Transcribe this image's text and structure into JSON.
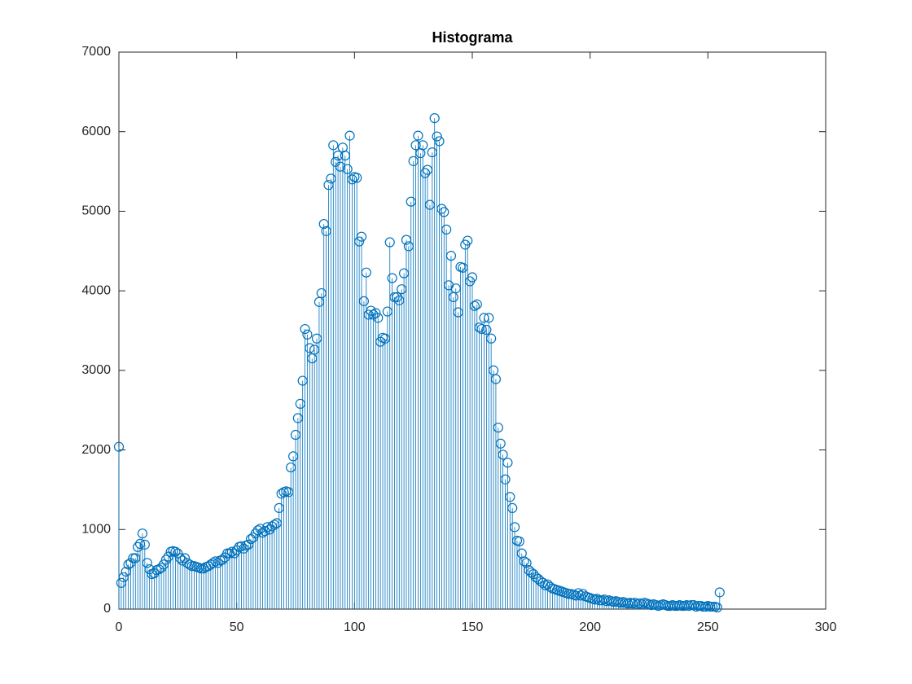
{
  "chart_data": {
    "type": "stem",
    "title": "Histograma",
    "color": "#0072bd",
    "x": [
      0,
      1,
      2,
      3,
      4,
      5,
      6,
      7,
      8,
      9,
      10,
      11,
      12,
      13,
      14,
      15,
      16,
      17,
      18,
      19,
      20,
      21,
      22,
      23,
      24,
      25,
      26,
      27,
      28,
      29,
      30,
      31,
      32,
      33,
      34,
      35,
      36,
      37,
      38,
      39,
      40,
      41,
      42,
      43,
      44,
      45,
      46,
      47,
      48,
      49,
      50,
      51,
      52,
      53,
      54,
      55,
      56,
      57,
      58,
      59,
      60,
      61,
      62,
      63,
      64,
      65,
      66,
      67,
      68,
      69,
      70,
      71,
      72,
      73,
      74,
      75,
      76,
      77,
      78,
      79,
      80,
      81,
      82,
      83,
      84,
      85,
      86,
      87,
      88,
      89,
      90,
      91,
      92,
      93,
      94,
      95,
      96,
      97,
      98,
      99,
      100,
      101,
      102,
      103,
      104,
      105,
      106,
      107,
      108,
      109,
      110,
      111,
      112,
      113,
      114,
      115,
      116,
      117,
      118,
      119,
      120,
      121,
      122,
      123,
      124,
      125,
      126,
      127,
      128,
      129,
      130,
      131,
      132,
      133,
      134,
      135,
      136,
      137,
      138,
      139,
      140,
      141,
      142,
      143,
      144,
      145,
      146,
      147,
      148,
      149,
      150,
      151,
      152,
      153,
      154,
      155,
      156,
      157,
      158,
      159,
      160,
      161,
      162,
      163,
      164,
      165,
      166,
      167,
      168,
      169,
      170,
      171,
      172,
      173,
      174,
      175,
      176,
      177,
      178,
      179,
      180,
      181,
      182,
      183,
      184,
      185,
      186,
      187,
      188,
      189,
      190,
      191,
      192,
      193,
      194,
      195,
      196,
      197,
      198,
      199,
      200,
      201,
      202,
      203,
      204,
      205,
      206,
      207,
      208,
      209,
      210,
      211,
      212,
      213,
      214,
      215,
      216,
      217,
      218,
      219,
      220,
      221,
      222,
      223,
      224,
      225,
      226,
      227,
      228,
      229,
      230,
      231,
      232,
      233,
      234,
      235,
      236,
      237,
      238,
      239,
      240,
      241,
      242,
      243,
      244,
      245,
      246,
      247,
      248,
      249,
      250,
      251,
      252,
      253,
      254,
      255
    ],
    "values": [
      2040,
      330,
      400,
      470,
      560,
      580,
      640,
      640,
      780,
      820,
      950,
      810,
      580,
      500,
      440,
      450,
      490,
      500,
      520,
      560,
      620,
      660,
      720,
      730,
      720,
      700,
      640,
      610,
      640,
      580,
      560,
      540,
      540,
      530,
      520,
      510,
      510,
      530,
      540,
      560,
      580,
      600,
      580,
      610,
      620,
      650,
      700,
      700,
      720,
      700,
      740,
      780,
      790,
      760,
      800,
      810,
      880,
      900,
      950,
      990,
      1010,
      960,
      980,
      1030,
      1000,
      1040,
      1060,
      1080,
      1270,
      1450,
      1470,
      1480,
      1470,
      1780,
      1920,
      2190,
      2400,
      2580,
      2870,
      3520,
      3450,
      3280,
      3150,
      3260,
      3400,
      3860,
      3970,
      4840,
      4750,
      5330,
      5410,
      5830,
      5620,
      5700,
      5560,
      5800,
      5700,
      5530,
      5950,
      5400,
      5430,
      5420,
      4620,
      4680,
      3870,
      4230,
      3700,
      3750,
      3700,
      3720,
      3660,
      3360,
      3410,
      3400,
      3740,
      4610,
      4160,
      3920,
      3920,
      3880,
      4020,
      4220,
      4640,
      4560,
      5120,
      5630,
      5830,
      5950,
      5730,
      5830,
      5480,
      5520,
      5080,
      5740,
      6170,
      5940,
      5880,
      5030,
      4990,
      4770,
      4070,
      4440,
      3920,
      4030,
      3730,
      4300,
      4290,
      4580,
      4630,
      4120,
      4170,
      3810,
      3830,
      3540,
      3520,
      3660,
      3510,
      3660,
      3400,
      3000,
      2890,
      2280,
      2080,
      1940,
      1630,
      1840,
      1410,
      1270,
      1030,
      860,
      850,
      700,
      600,
      580,
      490,
      460,
      440,
      400,
      380,
      350,
      330,
      300,
      310,
      280,
      260,
      250,
      240,
      230,
      220,
      210,
      200,
      190,
      190,
      180,
      170,
      200,
      170,
      190,
      160,
      150,
      140,
      130,
      120,
      130,
      110,
      110,
      120,
      100,
      110,
      100,
      90,
      100,
      90,
      80,
      90,
      80,
      70,
      80,
      70,
      80,
      60,
      70,
      60,
      80,
      70,
      60,
      50,
      60,
      50,
      40,
      50,
      60,
      50,
      40,
      40,
      50,
      40,
      40,
      50,
      40,
      40,
      50,
      40,
      50,
      50,
      30,
      40,
      40,
      30,
      30,
      40,
      30,
      30,
      30,
      20,
      210
    ],
    "xlim": [
      0,
      300
    ],
    "xticks": [
      0,
      50,
      100,
      150,
      200,
      250,
      300
    ],
    "ylim": [
      0,
      7000
    ],
    "yticks": [
      0,
      1000,
      2000,
      3000,
      4000,
      5000,
      6000,
      7000
    ]
  }
}
